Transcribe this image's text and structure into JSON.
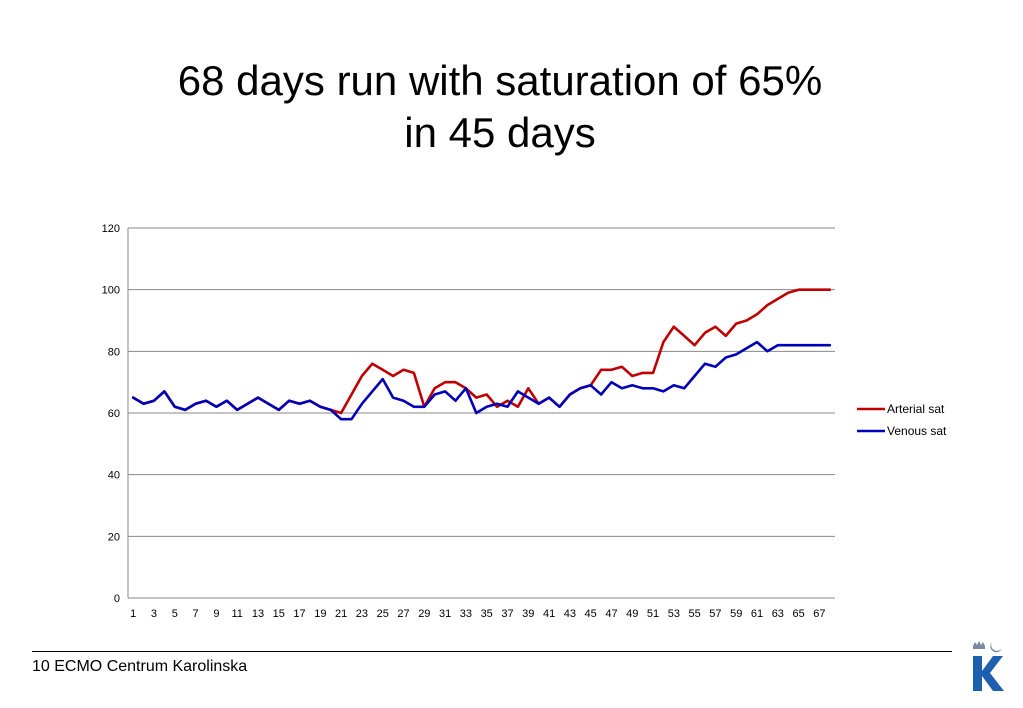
{
  "slide": {
    "title_line1": "68 days run with saturation of 65%",
    "title_line2": "in 45 days",
    "footer": "10 ECMO Centrum Karolinska"
  },
  "colors": {
    "arterial": "#C00000",
    "venous": "#0000B8",
    "grid": "#888888",
    "logo": "#1F5FAF"
  },
  "chart_data": {
    "type": "line",
    "title": "",
    "xlabel": "",
    "ylabel": "",
    "ylim": [
      0,
      120
    ],
    "yticks": [
      0,
      20,
      40,
      60,
      80,
      100,
      120
    ],
    "grid": "horizontal",
    "legend_position": "right",
    "x": [
      1,
      2,
      3,
      4,
      5,
      6,
      7,
      8,
      9,
      10,
      11,
      12,
      13,
      14,
      15,
      16,
      17,
      18,
      19,
      20,
      21,
      22,
      23,
      24,
      25,
      26,
      27,
      28,
      29,
      30,
      31,
      32,
      33,
      34,
      35,
      36,
      37,
      38,
      39,
      40,
      41,
      42,
      43,
      44,
      45,
      46,
      47,
      48,
      49,
      50,
      51,
      52,
      53,
      54,
      55,
      56,
      57,
      58,
      59,
      60,
      61,
      62,
      63,
      64,
      65,
      66,
      67,
      68
    ],
    "x_tick_labels": [
      "1",
      "3",
      "5",
      "7",
      "9",
      "11",
      "13",
      "15",
      "17",
      "19",
      "21",
      "23",
      "25",
      "27",
      "29",
      "31",
      "33",
      "35",
      "37",
      "39",
      "41",
      "43",
      "45",
      "47",
      "49",
      "51",
      "53",
      "55",
      "57",
      "59",
      "61",
      "63",
      "65",
      "67"
    ],
    "series": [
      {
        "name": "Arterial sat",
        "color": "#C00000",
        "values": [
          65,
          63,
          64,
          67,
          62,
          61,
          63,
          64,
          62,
          64,
          61,
          63,
          65,
          63,
          61,
          64,
          63,
          64,
          62,
          61,
          60,
          66,
          72,
          76,
          74,
          72,
          74,
          73,
          62,
          68,
          70,
          70,
          68,
          65,
          66,
          62,
          64,
          62,
          68,
          63,
          65,
          62,
          66,
          68,
          69,
          74,
          74,
          75,
          72,
          73,
          73,
          83,
          88,
          85,
          82,
          86,
          88,
          85,
          89,
          90,
          92,
          95,
          97,
          99,
          100,
          100,
          100,
          100
        ]
      },
      {
        "name": "Venous sat",
        "color": "#0000B8",
        "values": [
          65,
          63,
          64,
          67,
          62,
          61,
          63,
          64,
          62,
          64,
          61,
          63,
          65,
          63,
          61,
          64,
          63,
          64,
          62,
          61,
          58,
          58,
          63,
          67,
          71,
          65,
          64,
          62,
          62,
          66,
          67,
          64,
          68,
          60,
          62,
          63,
          62,
          67,
          65,
          63,
          65,
          62,
          66,
          68,
          69,
          66,
          70,
          68,
          69,
          68,
          68,
          67,
          69,
          68,
          72,
          76,
          75,
          78,
          79,
          81,
          83,
          80,
          82,
          82,
          82,
          82,
          82,
          82
        ]
      }
    ]
  }
}
